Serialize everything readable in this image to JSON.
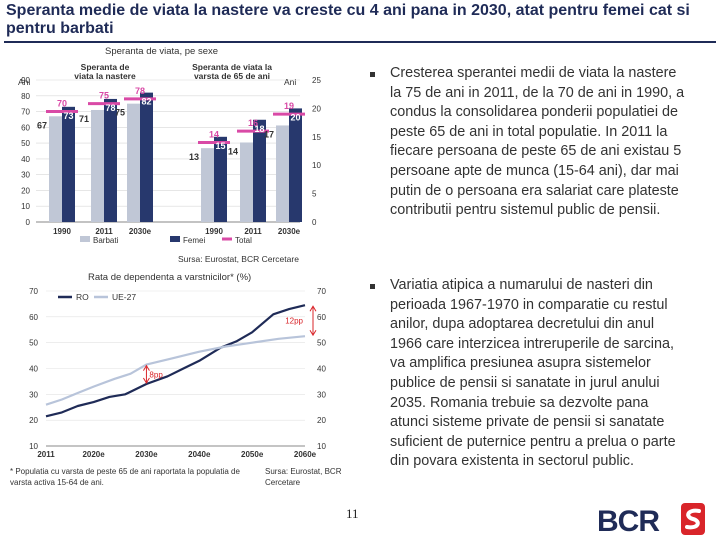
{
  "page": {
    "title": "Speranta medie de viata la nastere va creste cu 4 ani pana in 2030, atat pentru femei cat si pentru barbati",
    "page_number": "11"
  },
  "chart1": {
    "subtitle": "Speranta de viata, pe sexe",
    "source": "Sursa: Eurostat, BCR Cercetare"
  },
  "chart2": {
    "subtitle": "Rata de dependenta a varstnicilor* (%)",
    "footnote": "* Populatia cu varsta de peste 65 de ani raportata la populatia de varsta activa 15-64 de ani.",
    "source": "Sursa: Eurostat, BCR Cercetare"
  },
  "bullets": [
    "Cresterea sperantei medii de viata la nastere la 75 de ani in 2011, de la 70 de ani in 1990, a condus la consolidarea ponderii populatiei de peste 65 de ani in total populatie. In 2011 la fiecare persoana de peste 65 de ani existau 5 persoane apte de munca (15-64 ani), dar mai putin de o persoana era salariat care plateste contributii pentru sistemul public de pensii.",
    "Variatia atipica a numarului de nasteri din perioada 1967-1970 in comparatie cu restul anilor, dupa adoptarea decretului din anul 1966 care interzicea intreruperile de sarcina, va amplifica presiunea asupra sistemelor publice de pensii si sanatate in jurul anului 2035. Romania trebuie sa dezvolte pana atunci sisteme private de pensii si sanatate suficient de puternice pentru a prelua o parte din povara existenta in sectorul public."
  ],
  "logo": {
    "text": "BCR"
  },
  "colors": {
    "title": "#1f2b57",
    "barbati": "#c0c7d6",
    "femei": "#27386d",
    "total": "#d94aa6",
    "ro": "#1f2b57",
    "ue27": "#b8c4da",
    "accent_red": "#d9252a"
  },
  "chart_data": [
    {
      "type": "bar",
      "title": "Speranta de viata, pe sexe",
      "panels": [
        {
          "label": "Speranta de viata la nastere",
          "axis": "left",
          "ylim": [
            0,
            90
          ],
          "ylabel": "Ani",
          "categories": [
            "1990",
            "2011",
            "2030e"
          ],
          "series": [
            {
              "name": "Barbati",
              "values": [
                67,
                71,
                75
              ]
            },
            {
              "name": "Femei",
              "values": [
                73,
                78,
                82
              ]
            },
            {
              "name": "Total",
              "values": [
                70,
                75,
                78
              ]
            }
          ]
        },
        {
          "label": "Speranta de viata la varsta de 65 de ani",
          "axis": "right",
          "ylim": [
            0,
            25
          ],
          "ylabel": "Ani",
          "categories": [
            "1990",
            "2011",
            "2030e"
          ],
          "series": [
            {
              "name": "Barbati",
              "values": [
                13,
                14,
                17
              ]
            },
            {
              "name": "Femei",
              "values": [
                15,
                18,
                20
              ]
            },
            {
              "name": "Total",
              "values": [
                14,
                16,
                19
              ]
            }
          ]
        }
      ],
      "left_ticks": [
        "0",
        "10",
        "20",
        "30",
        "40",
        "50",
        "60",
        "70",
        "80",
        "90"
      ],
      "right_ticks": [
        "0",
        "5",
        "10",
        "15",
        "20",
        "25"
      ],
      "legend": [
        "Barbati",
        "Femei",
        "Total"
      ]
    },
    {
      "type": "line",
      "title": "Rata de dependenta a varstnicilor* (%)",
      "x": [
        2011,
        2020,
        2030,
        2040,
        2050,
        2060
      ],
      "x_tick_labels": [
        "2011",
        "2020e",
        "2030e",
        "2040e",
        "2050e",
        "2060e"
      ],
      "ylim": [
        10,
        70
      ],
      "y_ticks": [
        "10",
        "20",
        "30",
        "40",
        "50",
        "60",
        "70"
      ],
      "series": [
        {
          "name": "RO",
          "points": [
            [
              2011,
              21.5
            ],
            [
              2014,
              23
            ],
            [
              2017,
              25.5
            ],
            [
              2020,
              27
            ],
            [
              2023,
              29
            ],
            [
              2026,
              30
            ],
            [
              2030,
              34
            ],
            [
              2034,
              37
            ],
            [
              2037,
              40
            ],
            [
              2040,
              43
            ],
            [
              2044,
              48
            ],
            [
              2047,
              50.5
            ],
            [
              2050,
              54
            ],
            [
              2054,
              61
            ],
            [
              2057,
              63
            ],
            [
              2060,
              64.5
            ]
          ]
        },
        {
          "name": "UE-27",
          "points": [
            [
              2011,
              26
            ],
            [
              2014,
              28
            ],
            [
              2017,
              30.5
            ],
            [
              2020,
              33
            ],
            [
              2024,
              36
            ],
            [
              2027,
              38
            ],
            [
              2030,
              41.5
            ],
            [
              2035,
              44
            ],
            [
              2040,
              46.5
            ],
            [
              2045,
              48.5
            ],
            [
              2050,
              50
            ],
            [
              2055,
              51.5
            ],
            [
              2060,
              52.5
            ]
          ]
        }
      ],
      "annotations": [
        {
          "text": "8pp",
          "x": 2030
        },
        {
          "text": "12pp",
          "x": 2060
        }
      ]
    }
  ]
}
